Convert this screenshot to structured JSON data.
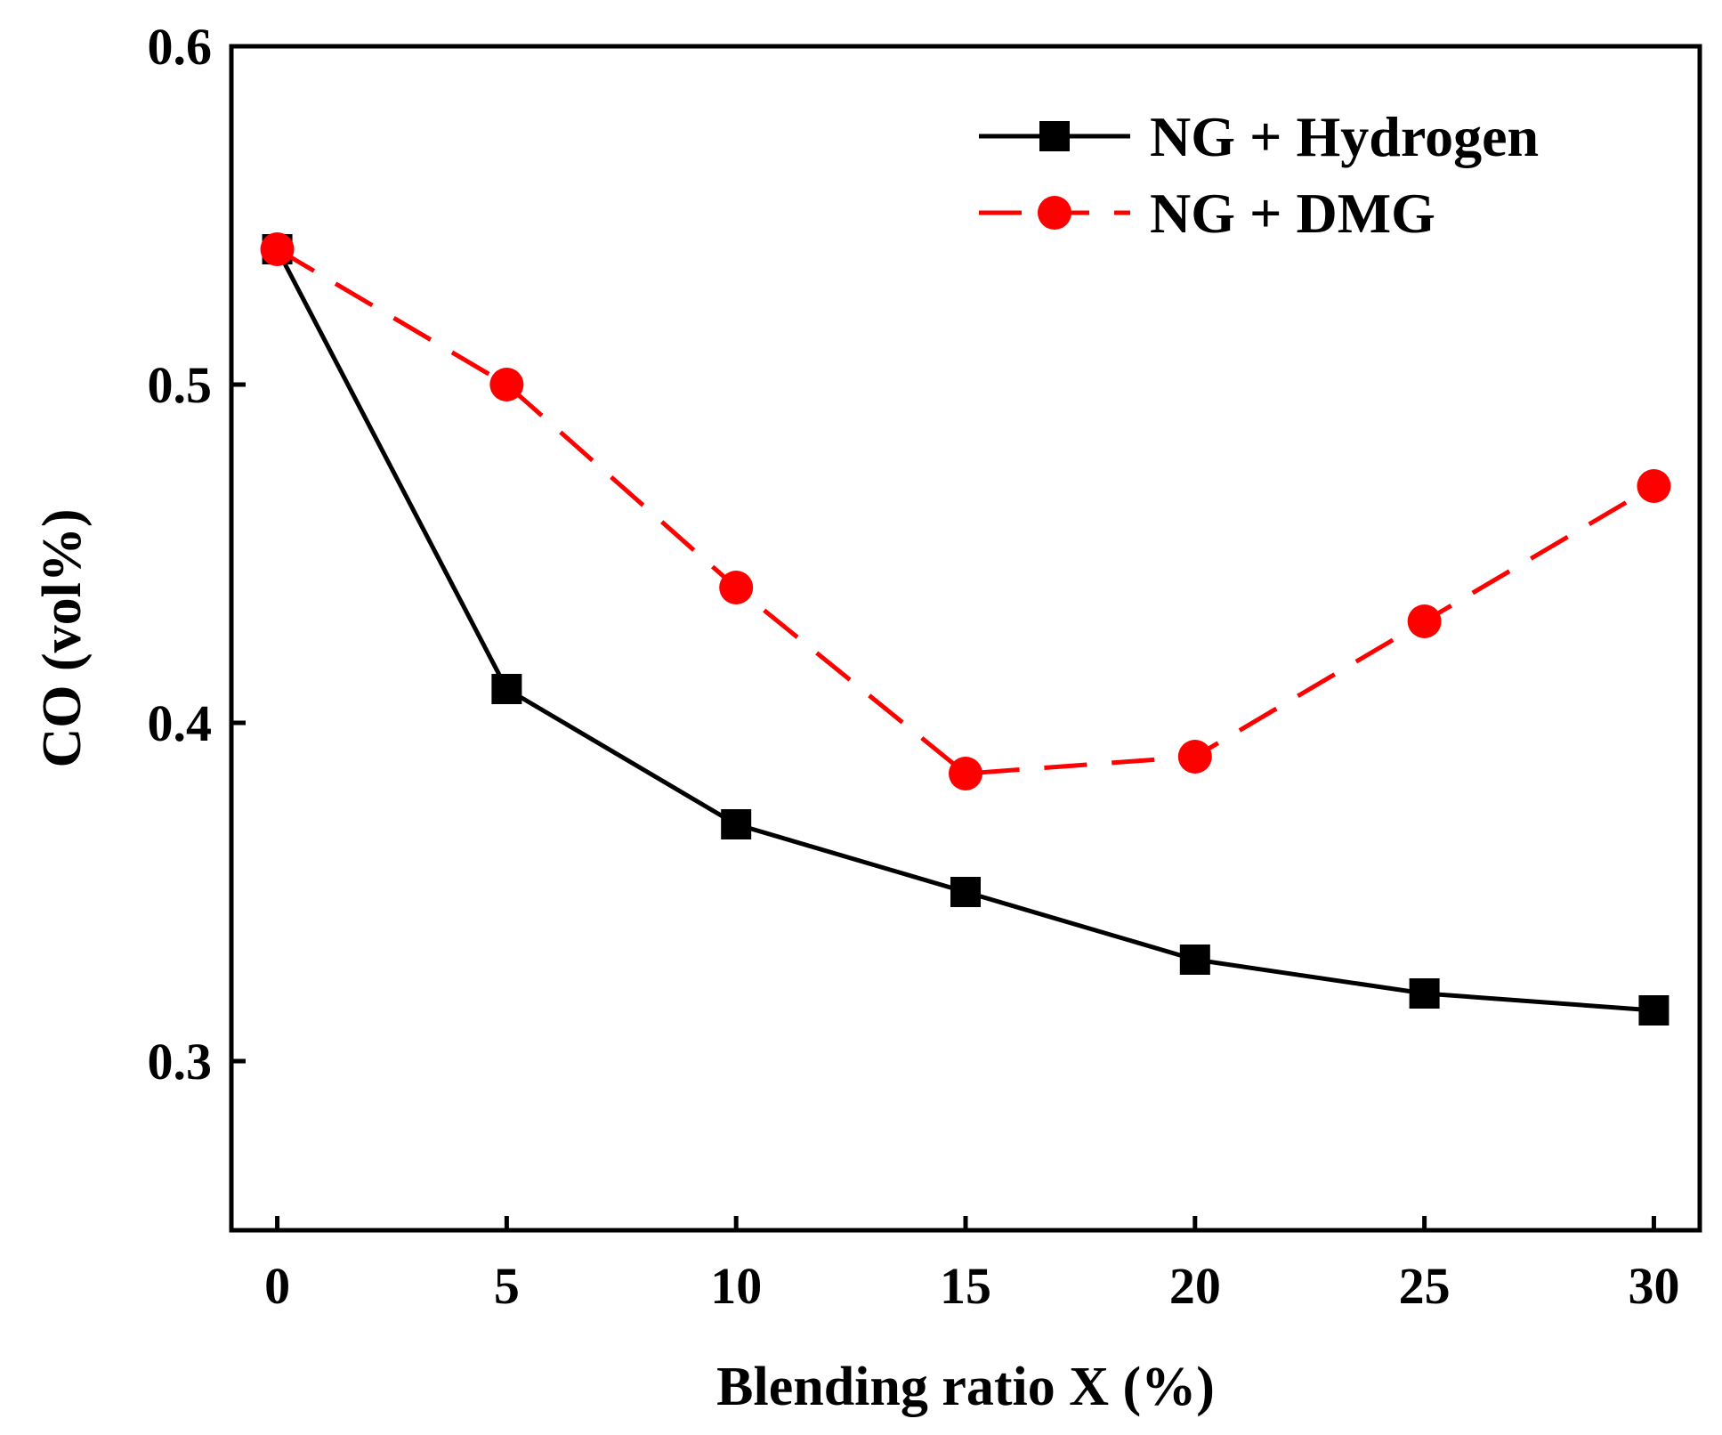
{
  "chart_data": {
    "type": "line",
    "title": "",
    "xlabel": "Blending ratio X (%)",
    "ylabel": "CO (vol%)",
    "x": [
      0,
      5,
      10,
      15,
      20,
      25,
      30
    ],
    "xlim": [
      -1,
      31
    ],
    "ylim": [
      0.25,
      0.6
    ],
    "xticks": [
      "0",
      "5",
      "10",
      "15",
      "20",
      "25",
      "30"
    ],
    "yticks": [
      "0.3",
      "0.4",
      "0.5",
      "0.6"
    ],
    "ytick_values": [
      0.3,
      0.4,
      0.5,
      0.6
    ],
    "grid": false,
    "legend_position": "top-right",
    "series": [
      {
        "name": "NG + Hydrogen",
        "values": [
          0.54,
          0.41,
          0.37,
          0.35,
          0.33,
          0.32,
          0.315
        ],
        "color": "#000000",
        "line_style": "solid",
        "marker": "square"
      },
      {
        "name": "NG + DMG",
        "values": [
          0.54,
          0.5,
          0.44,
          0.385,
          0.39,
          0.43,
          0.47
        ],
        "color": "#ff0000",
        "line_style": "dashed",
        "marker": "circle"
      }
    ]
  }
}
